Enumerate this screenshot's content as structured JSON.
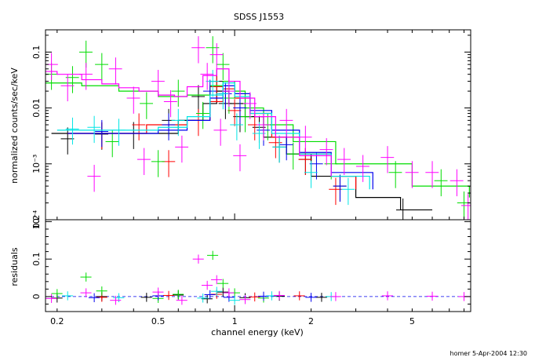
{
  "chart_data": {
    "type": "scatter",
    "title": "SDSS J1553",
    "xlabel": "channel energy (keV)",
    "xscale": "log",
    "xlim": [
      0.18,
      8.5
    ],
    "x_ticks": [
      {
        "v": 0.2,
        "label": "0.2"
      },
      {
        "v": 0.5,
        "label": "0.5"
      },
      {
        "v": 1,
        "label": "1"
      },
      {
        "v": 2,
        "label": "2"
      },
      {
        "v": 5,
        "label": "5"
      }
    ],
    "top_panel": {
      "ylabel": "normalized counts/sec/keV",
      "yscale": "log",
      "ylim": [
        0.0001,
        0.25
      ],
      "y_ticks": [
        {
          "v": 0.1,
          "label": "0.1"
        },
        {
          "v": 0.01,
          "label": "0.01"
        },
        {
          "v": 0.001,
          "label": "10⁻³"
        },
        {
          "v": 0.0001,
          "label": "10⁻⁴"
        }
      ]
    },
    "bottom_panel": {
      "ylabel": "residuals",
      "ylim": [
        -0.04,
        0.205
      ],
      "y_ticks": [
        {
          "v": 0,
          "label": "0"
        },
        {
          "v": 0.1,
          "label": "0.1"
        },
        {
          "v": 0.2,
          "label": "0.2"
        }
      ]
    },
    "series": [
      {
        "color": "#000000",
        "model": [
          [
            0.19,
            0.0035
          ],
          [
            0.5,
            0.0035
          ],
          [
            0.6,
            0.006
          ],
          [
            0.75,
            0.012
          ],
          [
            0.85,
            0.02
          ],
          [
            0.95,
            0.012
          ],
          [
            1.1,
            0.007
          ],
          [
            1.3,
            0.003
          ],
          [
            1.6,
            0.0015
          ],
          [
            2.0,
            0.0006
          ],
          [
            3.0,
            0.00025
          ],
          [
            4.5,
            0.00015
          ],
          [
            6.0,
            0.00015
          ]
        ],
        "points": [
          [
            0.22,
            0.0028
          ],
          [
            0.3,
            0.0034
          ],
          [
            0.4,
            0.0035
          ],
          [
            0.55,
            0.006
          ],
          [
            0.72,
            0.016
          ],
          [
            0.85,
            0.03
          ],
          [
            0.92,
            0.012
          ],
          [
            1.05,
            0.007
          ],
          [
            1.25,
            0.0045
          ],
          [
            1.5,
            0.002
          ],
          [
            1.9,
            0.0012
          ],
          [
            2.6,
            0.0004
          ],
          [
            4.6,
            0.00015
          ]
        ],
        "resid": [
          [
            0.2,
            -0.004
          ],
          [
            0.3,
            0.0
          ],
          [
            0.45,
            -0.002
          ],
          [
            0.6,
            0.004
          ],
          [
            0.78,
            -0.006
          ],
          [
            0.9,
            0.012
          ],
          [
            1.1,
            -0.003
          ],
          [
            1.5,
            0.001
          ],
          [
            2.2,
            -0.002
          ]
        ]
      },
      {
        "color": "#ff0000",
        "model": [
          [
            0.22,
            0.0035
          ],
          [
            0.45,
            0.005
          ],
          [
            0.65,
            0.006
          ],
          [
            0.8,
            0.013
          ],
          [
            0.9,
            0.022
          ],
          [
            1.0,
            0.015
          ],
          [
            1.15,
            0.008
          ],
          [
            1.4,
            0.003
          ],
          [
            1.8,
            0.0015
          ],
          [
            2.4,
            0.0006
          ],
          [
            3.0,
            0.00035
          ]
        ],
        "points": [
          [
            0.3,
            0.0035
          ],
          [
            0.42,
            0.005
          ],
          [
            0.55,
            0.0011
          ],
          [
            0.72,
            0.006
          ],
          [
            0.85,
            0.024
          ],
          [
            1.0,
            0.009
          ],
          [
            1.2,
            0.005
          ],
          [
            1.45,
            0.0024
          ],
          [
            1.9,
            0.0012
          ],
          [
            2.5,
            0.00035
          ]
        ],
        "resid": [
          [
            0.3,
            -0.002
          ],
          [
            0.55,
            0.003
          ],
          [
            0.85,
            0.006
          ],
          [
            1.2,
            -0.001
          ],
          [
            1.8,
            0.002
          ]
        ]
      },
      {
        "color": "#00dd00",
        "model": [
          [
            0.18,
            0.028
          ],
          [
            0.25,
            0.025
          ],
          [
            0.35,
            0.02
          ],
          [
            0.5,
            0.016
          ],
          [
            0.65,
            0.017
          ],
          [
            0.8,
            0.025
          ],
          [
            0.9,
            0.03
          ],
          [
            1.0,
            0.02
          ],
          [
            1.1,
            0.01
          ],
          [
            1.3,
            0.005
          ],
          [
            1.7,
            0.0025
          ],
          [
            2.5,
            0.001
          ],
          [
            5,
            0.0004
          ],
          [
            8.4,
            0.00025
          ]
        ],
        "points": [
          [
            0.19,
            0.04
          ],
          [
            0.23,
            0.035
          ],
          [
            0.26,
            0.1
          ],
          [
            0.3,
            0.06
          ],
          [
            0.33,
            0.0025
          ],
          [
            0.45,
            0.012
          ],
          [
            0.5,
            0.0011
          ],
          [
            0.6,
            0.02
          ],
          [
            0.75,
            0.008
          ],
          [
            0.82,
            0.12
          ],
          [
            0.9,
            0.06
          ],
          [
            0.95,
            0.015
          ],
          [
            1.1,
            0.007
          ],
          [
            1.35,
            0.005
          ],
          [
            1.7,
            0.0015
          ],
          [
            2.4,
            0.001
          ],
          [
            4.3,
            0.0007
          ],
          [
            6.5,
            0.0005
          ],
          [
            8.0,
            0.0002
          ]
        ],
        "resid": [
          [
            0.2,
            0.008
          ],
          [
            0.26,
            0.052
          ],
          [
            0.3,
            0.015
          ],
          [
            0.5,
            -0.005
          ],
          [
            0.6,
            0.006
          ],
          [
            0.82,
            0.11
          ],
          [
            0.9,
            0.035
          ],
          [
            1.0,
            0.01
          ],
          [
            1.3,
            -0.004
          ]
        ]
      },
      {
        "color": "#0000ee",
        "model": [
          [
            0.22,
            0.0035
          ],
          [
            0.5,
            0.004
          ],
          [
            0.65,
            0.006
          ],
          [
            0.8,
            0.015
          ],
          [
            0.9,
            0.025
          ],
          [
            1.0,
            0.018
          ],
          [
            1.15,
            0.009
          ],
          [
            1.4,
            0.004
          ],
          [
            1.8,
            0.0016
          ],
          [
            2.4,
            0.0007
          ],
          [
            3.5,
            0.00035
          ]
        ],
        "points": [
          [
            0.3,
            0.0038
          ],
          [
            0.55,
            0.005
          ],
          [
            0.8,
            0.02
          ],
          [
            0.92,
            0.018
          ],
          [
            1.05,
            0.01
          ],
          [
            1.3,
            0.004
          ],
          [
            1.6,
            0.0022
          ],
          [
            2.1,
            0.001
          ],
          [
            2.6,
            0.0004
          ]
        ],
        "resid": [
          [
            0.28,
            -0.003
          ],
          [
            0.5,
            0.002
          ],
          [
            0.8,
            0.005
          ],
          [
            0.95,
            -0.002
          ],
          [
            1.3,
            0.001
          ],
          [
            2.0,
            -0.002
          ]
        ]
      },
      {
        "color": "#00e5e5",
        "model": [
          [
            0.2,
            0.004
          ],
          [
            0.5,
            0.0045
          ],
          [
            0.65,
            0.007
          ],
          [
            0.8,
            0.017
          ],
          [
            0.9,
            0.028
          ],
          [
            1.0,
            0.016
          ],
          [
            1.15,
            0.008
          ],
          [
            1.4,
            0.0035
          ],
          [
            1.8,
            0.0015
          ],
          [
            2.4,
            0.0006
          ],
          [
            3.4,
            0.00035
          ]
        ],
        "points": [
          [
            0.23,
            0.0042
          ],
          [
            0.28,
            0.0045
          ],
          [
            0.35,
            0.004
          ],
          [
            0.6,
            0.006
          ],
          [
            0.82,
            0.03
          ],
          [
            0.9,
            0.018
          ],
          [
            1.02,
            0.005
          ],
          [
            1.25,
            0.0035
          ],
          [
            1.5,
            0.002
          ],
          [
            2.0,
            0.0007
          ],
          [
            2.8,
            0.00035
          ]
        ],
        "resid": [
          [
            0.22,
            0.002
          ],
          [
            0.35,
            -0.003
          ],
          [
            0.75,
            -0.004
          ],
          [
            0.85,
            0.014
          ],
          [
            1.0,
            -0.01
          ],
          [
            1.4,
            0.002
          ],
          [
            2.4,
            0.0
          ]
        ]
      },
      {
        "color": "#ff00ff",
        "model": [
          [
            0.18,
            0.045
          ],
          [
            0.2,
            0.04
          ],
          [
            0.25,
            0.032
          ],
          [
            0.3,
            0.027
          ],
          [
            0.35,
            0.023
          ],
          [
            0.42,
            0.02
          ],
          [
            0.5,
            0.017
          ],
          [
            0.58,
            0.016
          ],
          [
            0.65,
            0.024
          ],
          [
            0.75,
            0.038
          ],
          [
            0.85,
            0.05
          ],
          [
            0.95,
            0.03
          ],
          [
            1.05,
            0.015
          ],
          [
            1.2,
            0.007
          ],
          [
            1.45,
            0.003
          ],
          [
            1.8,
            0.0014
          ],
          [
            2.4,
            0.0006
          ]
        ],
        "points": [
          [
            0.19,
            0.06
          ],
          [
            0.22,
            0.025
          ],
          [
            0.26,
            0.04
          ],
          [
            0.28,
            0.0006
          ],
          [
            0.34,
            0.05
          ],
          [
            0.4,
            0.015
          ],
          [
            0.44,
            0.0012
          ],
          [
            0.5,
            0.03
          ],
          [
            0.56,
            0.013
          ],
          [
            0.62,
            0.002
          ],
          [
            0.72,
            0.12
          ],
          [
            0.78,
            0.04
          ],
          [
            0.85,
            0.09
          ],
          [
            0.88,
            0.004
          ],
          [
            0.95,
            0.02
          ],
          [
            1.05,
            0.0014
          ],
          [
            1.15,
            0.012
          ],
          [
            1.3,
            0.005
          ],
          [
            1.6,
            0.006
          ],
          [
            1.9,
            0.003
          ],
          [
            2.3,
            0.0018
          ],
          [
            2.7,
            0.0012
          ],
          [
            3.2,
            0.0009
          ],
          [
            4.0,
            0.0013
          ],
          [
            5.0,
            0.0007
          ],
          [
            6.0,
            0.0007
          ],
          [
            7.5,
            0.0005
          ],
          [
            8.3,
            0.00018
          ]
        ],
        "resid": [
          [
            0.19,
            -0.005
          ],
          [
            0.26,
            0.01
          ],
          [
            0.34,
            -0.01
          ],
          [
            0.5,
            0.012
          ],
          [
            0.62,
            -0.01
          ],
          [
            0.72,
            0.1
          ],
          [
            0.78,
            0.03
          ],
          [
            0.85,
            0.045
          ],
          [
            0.95,
            0.01
          ],
          [
            1.1,
            -0.008
          ],
          [
            1.5,
            0.003
          ],
          [
            2.5,
            0.0
          ],
          [
            4.0,
            0.002
          ],
          [
            6.0,
            0.001
          ],
          [
            8.0,
            0.0
          ]
        ]
      }
    ],
    "footer": "homer  5-Apr-2004 12:30"
  }
}
